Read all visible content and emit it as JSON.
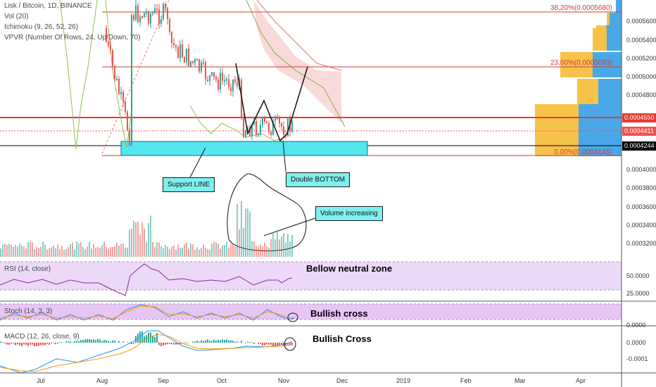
{
  "header": {
    "title": "Lisk / Bitcoin, 1D, BINANCE",
    "indicators": [
      "Vol (20)",
      "Ichimoku (9, 26, 52, 26)",
      "VPVR (Number Of Rows, 24, Up/Down, 70)"
    ]
  },
  "fib_levels": {
    "level_382": "38.20%(0.0005680)",
    "level_236": "23.60%(0.0005093)",
    "level_0": "0.00%(0.0004145)"
  },
  "price_axis": {
    "ticks": [
      "0.0005600",
      "0.0005400",
      "0.0005200",
      "0.0005000",
      "0.0004800",
      "0.0004000",
      "0.0003800",
      "0.0003600",
      "0.0003400",
      "0.0003200"
    ],
    "tag_resistance": "0.0004550",
    "tag_current": "0.0004411",
    "tag_support": "0.0004244",
    "tag_resistance_color": "#e53935",
    "tag_current_color": "#ef5350",
    "tag_support_color": "#000000"
  },
  "annotations": {
    "support_line": "Support LINE",
    "double_bottom": "Double BOTTOM",
    "volume_increasing": "Volume increasing",
    "rsi_note": "Bellow neutral zone",
    "stoch_note": "Bullish cross",
    "macd_note": "Bullish Cross"
  },
  "panels": {
    "rsi": {
      "title": "RSI (14, close)",
      "ticks": [
        "50.0000",
        "25.0000"
      ]
    },
    "stoch": {
      "title": "Stoch (14, 3, 3)",
      "ticks": [
        "0.0000"
      ]
    },
    "macd": {
      "title": "MACD (12, 26, close, 9)",
      "ticks": [
        "0.0000",
        "-0.0001"
      ]
    }
  },
  "time_axis": [
    "Jul",
    "Aug",
    "Sep",
    "Oct",
    "Nov",
    "Dec",
    "2019",
    "Feb",
    "Mar",
    "Apr"
  ],
  "colors": {
    "support_zone": "#55e5ee",
    "cloud": "#f5c1c1",
    "up": "#26a69a",
    "down": "#ef5350",
    "vpvr_up": "#4aa8e8",
    "vpvr_down": "#f7c24a",
    "rsi_bg": "#ecd9f7",
    "macd_line": "#2196f3",
    "signal_line": "#ff9800"
  }
}
